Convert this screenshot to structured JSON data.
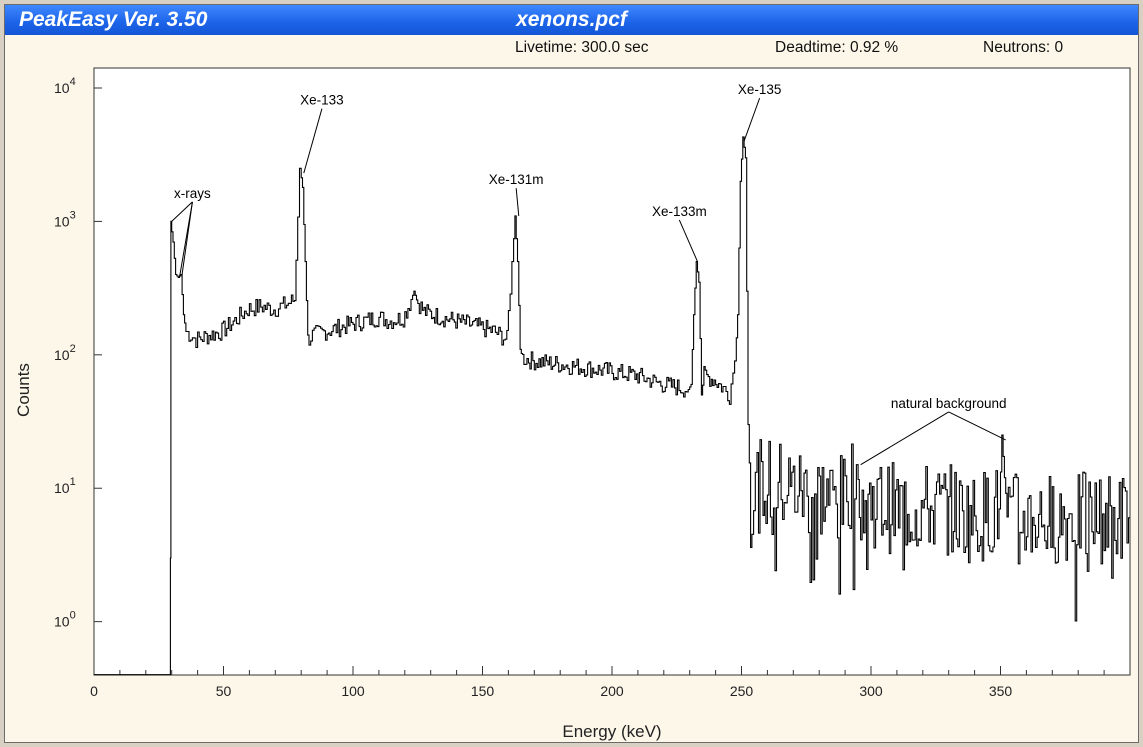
{
  "window": {
    "app_title": "PeakEasy Ver. 3.50",
    "file_title": "xenons.pcf"
  },
  "status": {
    "livetime": "Livetime: 300.0 sec",
    "deadtime": "Deadtime: 0.92 %",
    "neutrons": "Neutrons: 0"
  },
  "colors": {
    "titlebar": "#1b63e8",
    "window_bg": "#fdf7ea",
    "plot_bg": "#ffffff",
    "trace": "#000000"
  },
  "chart_data": {
    "type": "line",
    "xlabel": "Energy (keV)",
    "ylabel": "Counts",
    "xlim": [
      0,
      400
    ],
    "ylog": true,
    "ylim_decades": [
      -0.4,
      4.15
    ],
    "x_ticks": [
      0,
      50,
      100,
      150,
      200,
      250,
      300,
      350
    ],
    "y_ticks": [
      {
        "base": "10",
        "exp": "0",
        "value": 1
      },
      {
        "base": "10",
        "exp": "1",
        "value": 10
      },
      {
        "base": "10",
        "exp": "2",
        "value": 100
      },
      {
        "base": "10",
        "exp": "3",
        "value": 1000
      },
      {
        "base": "10",
        "exp": "4",
        "value": 10000
      }
    ],
    "grid": false,
    "series": [
      {
        "x": [
          0,
          29.5,
          29.7,
          30,
          31,
          32,
          33,
          34,
          35,
          36,
          38,
          40,
          45,
          50,
          55,
          60,
          65,
          70,
          75,
          78,
          80,
          81,
          82,
          83,
          85,
          90,
          100,
          110,
          115,
          120,
          123,
          124,
          125,
          128,
          135,
          145,
          155,
          160,
          162,
          163,
          164,
          165,
          166,
          170,
          180,
          190,
          200,
          210,
          220,
          230,
          231,
          232,
          233,
          234,
          235,
          236,
          240,
          244,
          246,
          248,
          249,
          250,
          251,
          252,
          253,
          254,
          256,
          260,
          270,
          280,
          290,
          295,
          296,
          300,
          310,
          320,
          330,
          340,
          350,
          351,
          352,
          353,
          355,
          360,
          370,
          380,
          390,
          400
        ],
        "y": [
          0.4,
          0.4,
          3,
          1000,
          700,
          400,
          380,
          400,
          200,
          150,
          140,
          130,
          140,
          150,
          180,
          220,
          230,
          220,
          240,
          260,
          2500,
          1800,
          500,
          130,
          140,
          150,
          170,
          190,
          180,
          190,
          260,
          300,
          260,
          210,
          190,
          170,
          150,
          130,
          500,
          1100,
          500,
          110,
          95,
          90,
          85,
          80,
          75,
          70,
          60,
          55,
          60,
          200,
          500,
          350,
          50,
          70,
          65,
          55,
          50,
          90,
          200,
          2000,
          4300,
          3000,
          30,
          8,
          10,
          11,
          10,
          9,
          8,
          15,
          9,
          8,
          7,
          7,
          7,
          6,
          7,
          25,
          12,
          7,
          6,
          6,
          6,
          6,
          6,
          6
        ]
      }
    ],
    "annotations": [
      {
        "text": "x-rays",
        "x": 38,
        "y": 1500,
        "points": [
          [
            30,
            1000
          ],
          [
            33,
            380
          ],
          [
            34,
            400
          ]
        ]
      },
      {
        "text": "Xe-133",
        "x": 88,
        "y": 7500,
        "points": [
          [
            81,
            2300
          ]
        ]
      },
      {
        "text": "Xe-131m",
        "x": 163,
        "y": 1900,
        "points": [
          [
            164,
            1100
          ]
        ]
      },
      {
        "text": "Xe-133m",
        "x": 226,
        "y": 1100,
        "points": [
          [
            233,
            500
          ]
        ]
      },
      {
        "text": "Xe-135",
        "x": 257,
        "y": 9000,
        "points": [
          [
            251,
            4000
          ]
        ]
      },
      {
        "text": "natural background",
        "x": 330,
        "y": 40,
        "points": [
          [
            296,
            15
          ],
          [
            352,
            23
          ]
        ]
      }
    ]
  }
}
